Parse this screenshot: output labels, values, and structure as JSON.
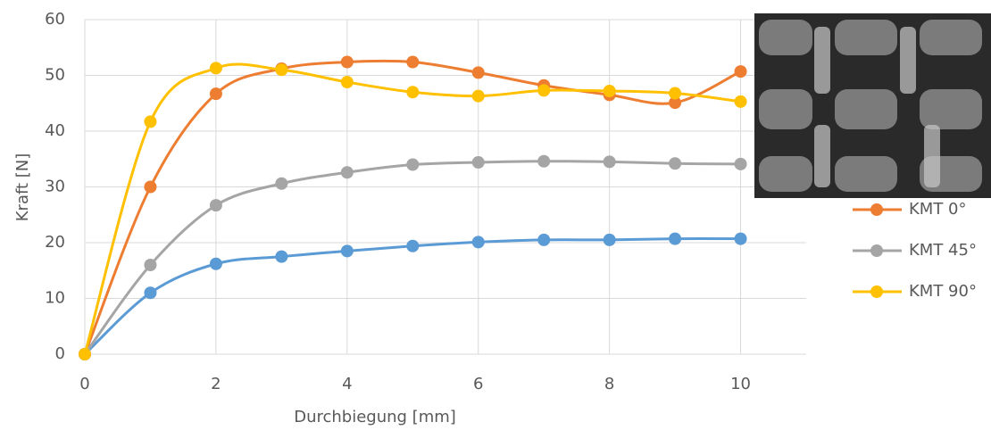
{
  "chart_data": {
    "type": "line",
    "x": [
      0,
      1,
      2,
      3,
      4,
      5,
      6,
      7,
      8,
      9,
      10
    ],
    "series": [
      {
        "color": "#5B9BD5",
        "values": [
          0,
          11,
          16.2,
          17.5,
          18.5,
          19.4,
          20.1,
          20.5,
          20.5,
          20.7,
          20.7
        ]
      },
      {
        "name": "KMT 0°",
        "color": "#ED7D31",
        "values": [
          0,
          30,
          46.7,
          51.2,
          52.4,
          52.4,
          50.5,
          48.2,
          46.5,
          45.1,
          50.7
        ]
      },
      {
        "name": "KMT 45°",
        "color": "#A5A5A5",
        "values": [
          0,
          16,
          26.7,
          30.6,
          32.6,
          34,
          34.4,
          34.6,
          34.5,
          34.2,
          34.1
        ]
      },
      {
        "name": "KMT 90°",
        "color": "#FFC000",
        "values": [
          0,
          41.7,
          51.3,
          51,
          48.8,
          47,
          46.3,
          47.3,
          47.2,
          46.8,
          45.3
        ]
      }
    ],
    "xlabel": "Durchbiegung [mm]",
    "ylabel": "Kraft [N]",
    "xlim": [
      0,
      11
    ],
    "xticks": [
      0,
      2,
      4,
      6,
      8,
      10
    ],
    "ylim": [
      0,
      60
    ],
    "yticks": [
      0,
      10,
      20,
      30,
      40,
      50,
      60
    ],
    "grid": true,
    "legend": "right",
    "smooth": true
  }
}
